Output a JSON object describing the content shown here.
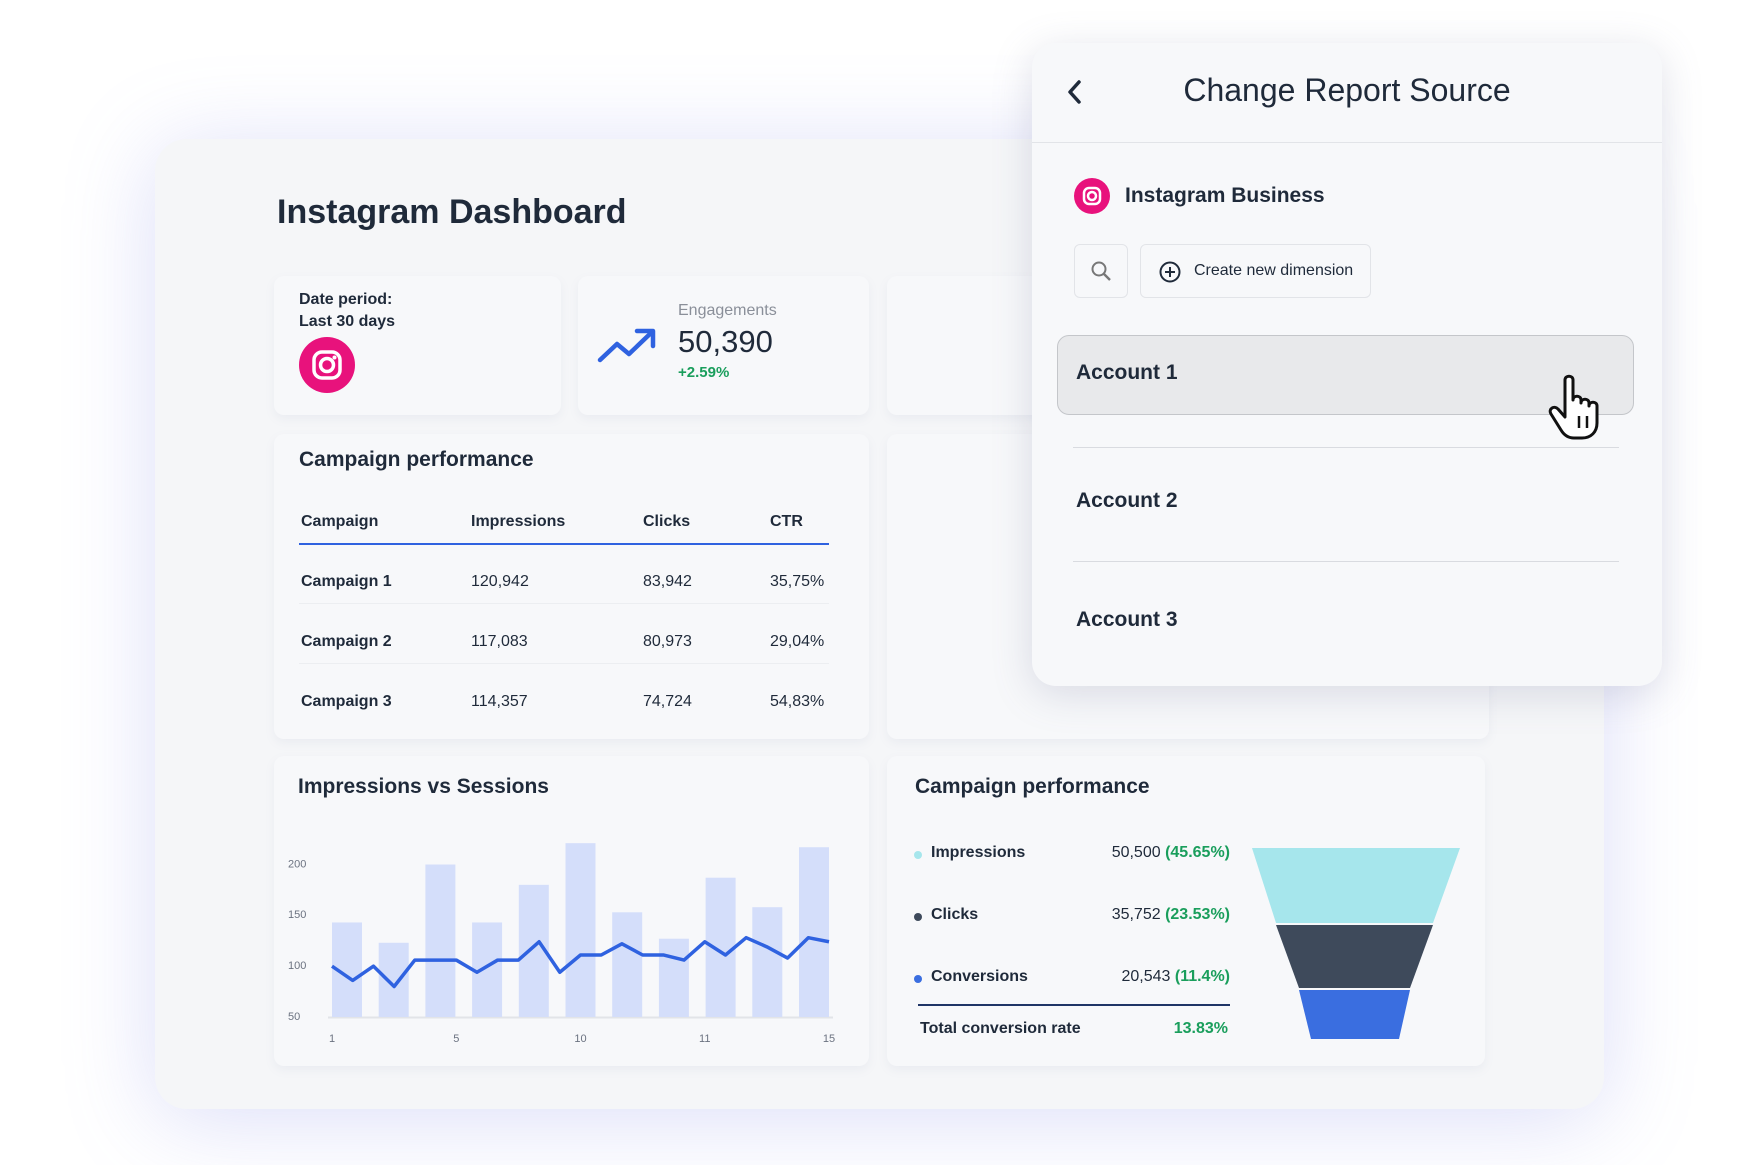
{
  "dashboard": {
    "title": "Instagram Dashboard",
    "date_period": {
      "label": "Date period:",
      "value": "Last 30 days"
    },
    "engagements": {
      "label": "Engagements",
      "value": "50,390",
      "change": "+2.59%"
    },
    "campaign_table": {
      "title": "Campaign performance",
      "columns": [
        "Campaign",
        "Impressions",
        "Clicks",
        "CTR"
      ],
      "rows": [
        [
          "Campaign 1",
          "120,942",
          "83,942",
          "35,75%"
        ],
        [
          "Campaign 2",
          "117,083",
          "80,973",
          "29,04%"
        ],
        [
          "Campaign 3",
          "114,357",
          "74,724",
          "54,83%"
        ]
      ]
    },
    "funnel": {
      "title": "Campaign performance",
      "rows": [
        {
          "label": "Impressions",
          "value": "50,500",
          "share": "(45.65%)",
          "color": "#a6e6ec"
        },
        {
          "label": "Clicks",
          "value": "35,752",
          "share": "(23.53%)",
          "color": "#3e4a5b"
        },
        {
          "label": "Conversions",
          "value": "20,543",
          "share": "(11.4%)",
          "color": "#3a6ee0"
        }
      ],
      "total": {
        "label": "Total conversion rate",
        "value": "13.83%"
      }
    }
  },
  "chart_data": {
    "type": "bar",
    "title": "Impressions vs Sessions",
    "x_labels": [
      "1",
      "5",
      "10",
      "11",
      "15"
    ],
    "series": [
      {
        "type": "bar",
        "color": "#d4defa",
        "values": [
          143,
          123,
          200,
          143,
          180,
          221,
          153,
          127,
          187,
          158,
          217
        ]
      },
      {
        "type": "line",
        "color": "#2f62e0",
        "values": [
          100,
          86,
          100,
          80,
          106,
          106,
          106,
          94,
          106,
          106,
          124,
          94,
          111,
          111,
          122,
          111,
          111,
          106,
          124,
          111,
          128,
          119,
          108,
          128,
          124
        ]
      }
    ],
    "ylim": [
      50,
      230
    ],
    "yticks": [
      50,
      100,
      150,
      200
    ]
  },
  "panel": {
    "title": "Change Report Source",
    "source": "Instagram Business",
    "create_button": "Create new dimension",
    "accounts": [
      "Account 1",
      "Account 2",
      "Account 3"
    ]
  }
}
